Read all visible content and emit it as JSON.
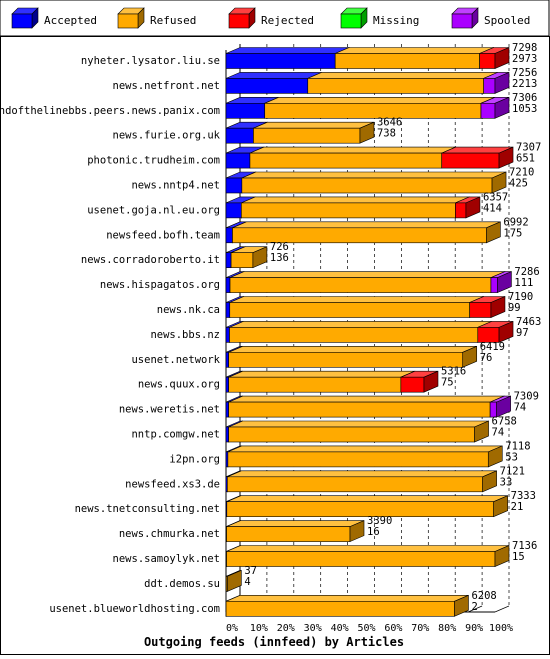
{
  "chart_data": {
    "type": "bar",
    "title": "Outgoing feeds (innfeed) by Articles",
    "stacked": true,
    "orientation": "horizontal",
    "xlim": [
      0,
      100
    ],
    "x_unit": "%",
    "x_ticks": [
      "0%",
      "10%",
      "20%",
      "30%",
      "40%",
      "50%",
      "60%",
      "70%",
      "80%",
      "90%",
      "100%"
    ],
    "grid": true,
    "legend_position": "top",
    "series": [
      {
        "name": "Accepted",
        "color": "#0000ff",
        "side": "#00008c",
        "top": "#3030ff"
      },
      {
        "name": "Refused",
        "color": "#ffaa00",
        "side": "#a06a00",
        "top": "#ffc040"
      },
      {
        "name": "Rejected",
        "color": "#ff0000",
        "side": "#a00000",
        "top": "#ff4040"
      },
      {
        "name": "Missing",
        "color": "#00ff00",
        "side": "#00a000",
        "top": "#40ff40"
      },
      {
        "name": "Spooled",
        "color": "#aa00ff",
        "side": "#6a00a0",
        "top": "#c040ff"
      }
    ],
    "rows": [
      {
        "host": "nyheter.lysator.liu.se",
        "total": "7298",
        "refused": "2973",
        "segments": [
          40.6,
          53.7,
          5.7,
          0,
          0
        ]
      },
      {
        "host": "news.netfront.net",
        "total": "7256",
        "refused": "2213",
        "segments": [
          30.4,
          65.4,
          0,
          0,
          4.2
        ]
      },
      {
        "host": "endofthelinebbs.peers.news.panix.com",
        "total": "7306",
        "refused": "1053",
        "segments": [
          14.4,
          80.4,
          0,
          0,
          5.2
        ]
      },
      {
        "host": "news.furie.org.uk",
        "total": "3646",
        "refused": "738",
        "segments": [
          10.2,
          39.6,
          0,
          0,
          0
        ]
      },
      {
        "host": "photonic.trudheim.com",
        "total": "7307",
        "refused": "651",
        "segments": [
          8.9,
          71.3,
          21.3,
          0,
          0
        ]
      },
      {
        "host": "news.nntp4.net",
        "total": "7210",
        "refused": "425",
        "segments": [
          5.9,
          93.0,
          0,
          0,
          0
        ]
      },
      {
        "host": "usenet.goja.nl.eu.org",
        "total": "6357",
        "refused": "414",
        "segments": [
          5.7,
          79.6,
          3.9,
          0,
          0
        ]
      },
      {
        "host": "newsfeed.bofh.team",
        "total": "6992",
        "refused": "175",
        "segments": [
          2.4,
          94.4,
          0,
          0,
          0
        ]
      },
      {
        "host": "news.corradoroberto.it",
        "total": "726",
        "refused": "136",
        "segments": [
          1.9,
          8.1,
          0,
          0,
          0
        ]
      },
      {
        "host": "news.hispagatos.org",
        "total": "7286",
        "refused": "111",
        "segments": [
          1.5,
          97.0,
          0,
          0,
          2.4
        ]
      },
      {
        "host": "news.nk.ca",
        "total": "7190",
        "refused": "99",
        "segments": [
          1.4,
          89.2,
          7.9,
          0,
          0
        ]
      },
      {
        "host": "news.bbs.nz",
        "total": "7463",
        "refused": "97",
        "segments": [
          1.3,
          92.3,
          7.9,
          0,
          0
        ]
      },
      {
        "host": "usenet.network",
        "total": "6419",
        "refused": "76",
        "segments": [
          1.0,
          87.0,
          0,
          0,
          0
        ]
      },
      {
        "host": "news.quux.org",
        "total": "5316",
        "refused": "75",
        "segments": [
          1.0,
          64.0,
          8.6,
          0,
          0
        ]
      },
      {
        "host": "news.weretis.net",
        "total": "7309",
        "refused": "74",
        "segments": [
          1.0,
          97.2,
          0,
          0,
          2.4
        ]
      },
      {
        "host": "nntp.comgw.net",
        "total": "6758",
        "refused": "74",
        "segments": [
          1.0,
          91.4,
          0,
          0,
          0
        ]
      },
      {
        "host": "i2pn.org",
        "total": "7118",
        "refused": "53",
        "segments": [
          0.7,
          96.8,
          0,
          0,
          0
        ]
      },
      {
        "host": "newsfeed.xs3.de",
        "total": "7121",
        "refused": "33",
        "segments": [
          0.5,
          94.9,
          0,
          0,
          0
        ]
      },
      {
        "host": "news.tnetconsulting.net",
        "total": "7333",
        "refused": "21",
        "segments": [
          0.3,
          99.2,
          0,
          0,
          0
        ]
      },
      {
        "host": "news.chmurka.net",
        "total": "3390",
        "refused": "16",
        "segments": [
          0.2,
          45.9,
          0,
          0,
          0
        ]
      },
      {
        "host": "news.samoylyk.net",
        "total": "7136",
        "refused": "15",
        "segments": [
          0.2,
          99.8,
          0,
          0,
          0
        ]
      },
      {
        "host": "ddt.demos.su",
        "total": "37",
        "refused": "4",
        "segments": [
          0.1,
          0.4,
          0,
          0,
          0
        ]
      },
      {
        "host": "usenet.blueworldhosting.com",
        "total": "6208",
        "refused": "2",
        "segments": [
          0.03,
          84.9,
          0,
          0,
          0
        ]
      }
    ]
  }
}
